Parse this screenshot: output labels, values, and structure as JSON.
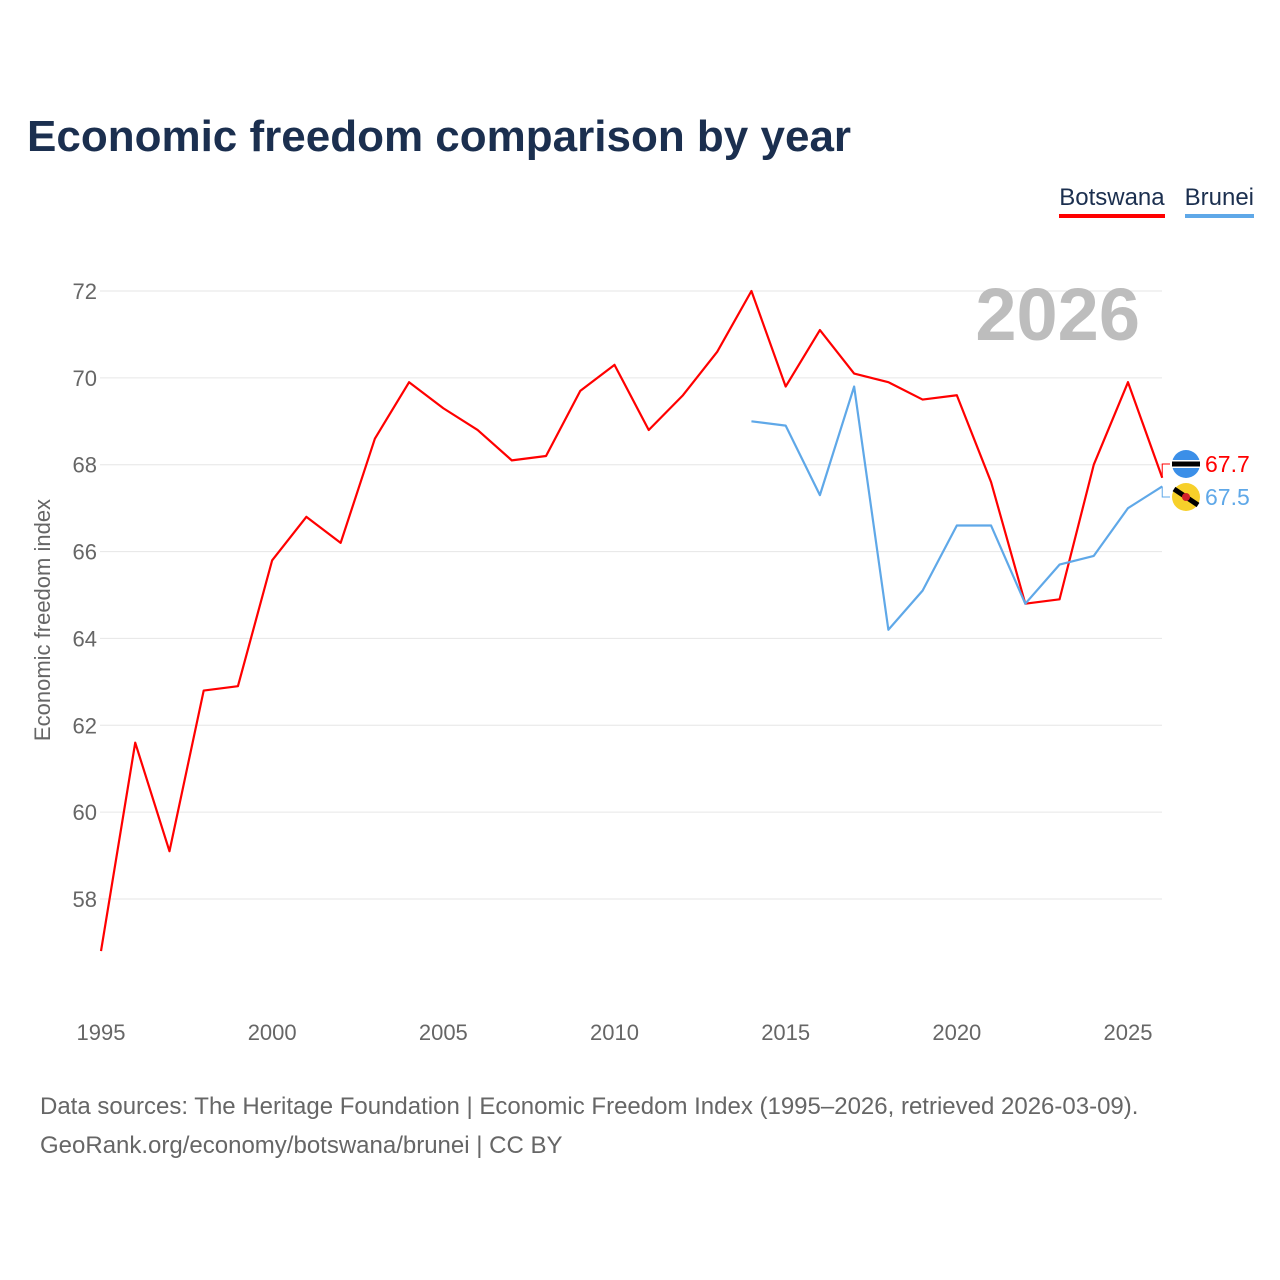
{
  "title": "Economic freedom comparison by year",
  "source_line1": "Data sources: The Heritage Foundation | Economic Freedom Index (1995–2026, retrieved 2026-03-09).",
  "source_line2": "GeoRank.org/economy/botswana/brunei | CC BY",
  "chart_data": {
    "type": "line",
    "title": "Economic freedom comparison by year",
    "ylabel": "Economic freedom index",
    "xlabel": "",
    "ylim": [
      56,
      73
    ],
    "xlim": [
      1995,
      2026
    ],
    "yticks": [
      58,
      60,
      62,
      64,
      66,
      68,
      70,
      72
    ],
    "xticks": [
      1995,
      2000,
      2005,
      2010,
      2015,
      2020,
      2025
    ],
    "year_label": "2026",
    "legend_position": "top-right",
    "series": [
      {
        "name": "Botswana",
        "color": "#ff0000",
        "end_label": "67.7",
        "x": [
          1995,
          1996,
          1997,
          1998,
          1999,
          2000,
          2001,
          2002,
          2003,
          2004,
          2005,
          2006,
          2007,
          2008,
          2009,
          2010,
          2011,
          2012,
          2013,
          2014,
          2015,
          2016,
          2017,
          2018,
          2019,
          2020,
          2021,
          2022,
          2023,
          2024,
          2025,
          2026
        ],
        "values": [
          56.8,
          61.6,
          59.1,
          62.8,
          62.9,
          65.8,
          66.8,
          66.2,
          68.6,
          69.9,
          69.3,
          68.8,
          68.1,
          68.2,
          69.7,
          70.3,
          68.8,
          69.6,
          70.6,
          72.0,
          69.8,
          71.1,
          70.1,
          69.9,
          69.5,
          69.6,
          67.6,
          64.8,
          64.9,
          68.0,
          69.9,
          67.7
        ]
      },
      {
        "name": "Brunei",
        "color": "#5fa8e8",
        "end_label": "67.5",
        "x": [
          2014,
          2015,
          2016,
          2017,
          2018,
          2019,
          2020,
          2021,
          2022,
          2023,
          2024,
          2025,
          2026
        ],
        "values": [
          69.0,
          68.9,
          67.3,
          69.8,
          64.2,
          65.1,
          66.6,
          66.6,
          64.8,
          65.7,
          65.9,
          67.0,
          67.5
        ]
      }
    ]
  }
}
